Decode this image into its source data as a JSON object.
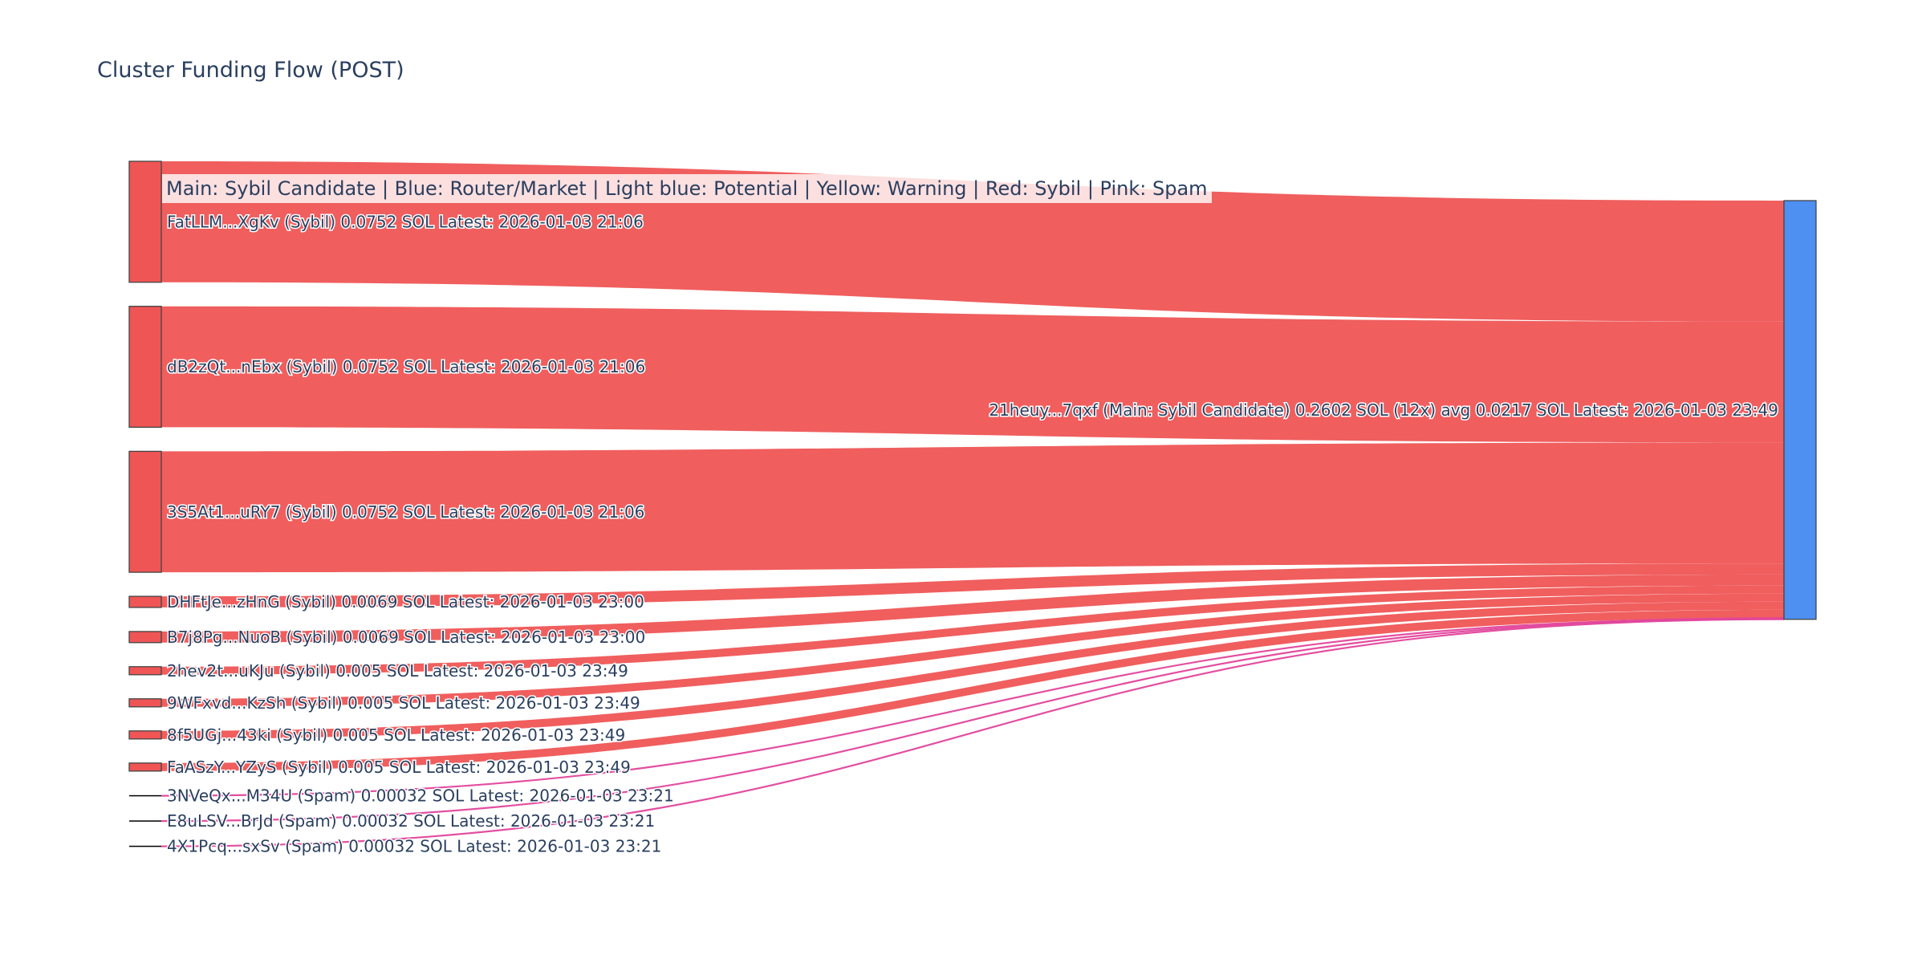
{
  "page": {
    "legend_annotation": "Main: Sybil Candidate  |  Blue: Router/Market | Light blue: Potential | Yellow: Warning | Red: Sybil | Pink: Spam"
  },
  "colors": {
    "sybil": "#ef5555",
    "spam": "#e2459b",
    "spam_node": "#000000",
    "main": "#4e8ff2",
    "node_border": "#444444",
    "text": "#2a3f5f"
  },
  "chart_data": {
    "type": "sankey",
    "title": "Cluster Funding Flow (POST)",
    "target": {
      "label": "21heuy...7qxf (Main: Sybil Candidate) 0.2602 SOL (12x) avg 0.0217 SOL Latest: 2026-01-03 23:49",
      "category": "main",
      "total": 0.2602
    },
    "sources": [
      {
        "label": "FatLLM...XgKv (Sybil) 0.0752 SOL Latest: 2026-01-03 21:06",
        "value": 0.0752,
        "category": "sybil"
      },
      {
        "label": "dB2zQt...nEbx (Sybil) 0.0752 SOL Latest: 2026-01-03 21:06",
        "value": 0.0752,
        "category": "sybil"
      },
      {
        "label": "3S5At1...uRY7 (Sybil) 0.0752 SOL Latest: 2026-01-03 21:06",
        "value": 0.0752,
        "category": "sybil"
      },
      {
        "label": "DHFtJe...zHnG (Sybil) 0.0069 SOL Latest: 2026-01-03 23:00",
        "value": 0.0069,
        "category": "sybil"
      },
      {
        "label": "B7j8Pg...NuoB (Sybil) 0.0069 SOL Latest: 2026-01-03 23:00",
        "value": 0.0069,
        "category": "sybil"
      },
      {
        "label": "2hev2t...uKJu (Sybil) 0.005 SOL Latest: 2026-01-03 23:49",
        "value": 0.005,
        "category": "sybil"
      },
      {
        "label": "9WFxvd...KzSh (Sybil) 0.005 SOL Latest: 2026-01-03 23:49",
        "value": 0.005,
        "category": "sybil"
      },
      {
        "label": "8f5UGj...43ki (Sybil) 0.005 SOL Latest: 2026-01-03 23:49",
        "value": 0.005,
        "category": "sybil"
      },
      {
        "label": "FaASzY...YZyS (Sybil) 0.005 SOL Latest: 2026-01-03 23:49",
        "value": 0.005,
        "category": "sybil"
      },
      {
        "label": "3NVeQx...M34U (Spam) 0.00032 SOL Latest: 2026-01-03 23:21",
        "value": 0.00032,
        "category": "spam"
      },
      {
        "label": "E8uLSV...BrJd (Spam) 0.00032 SOL Latest: 2026-01-03 23:21",
        "value": 0.00032,
        "category": "spam"
      },
      {
        "label": "4X1Pcq...sxSv (Spam) 0.00032 SOL Latest: 2026-01-03 23:21",
        "value": 0.00032,
        "category": "spam"
      }
    ]
  }
}
